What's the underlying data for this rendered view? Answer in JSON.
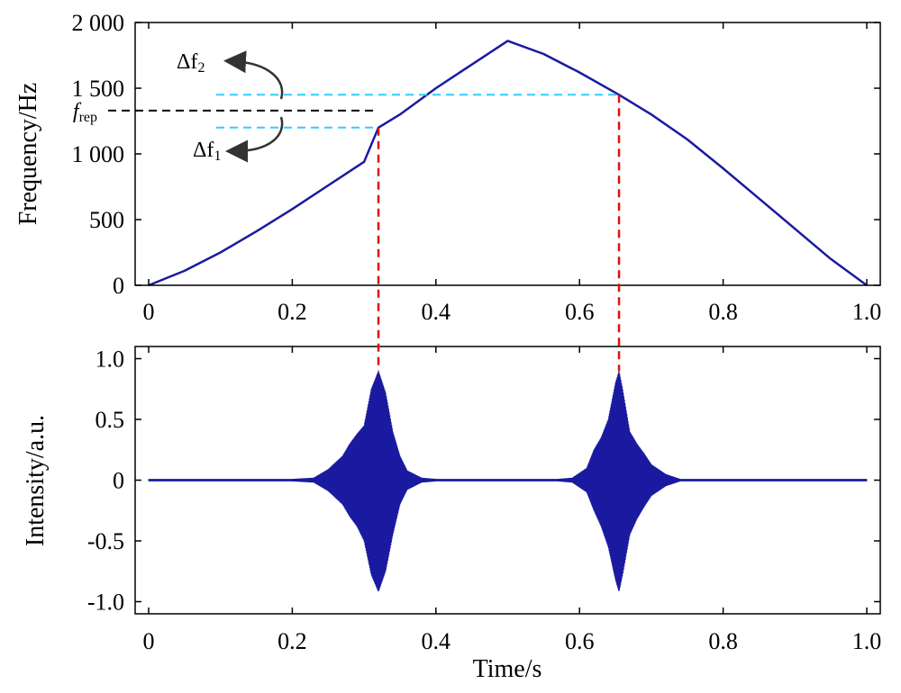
{
  "chart_data": [
    {
      "type": "line",
      "ylabel": "Frequency/Hz",
      "xlim": [
        0,
        1.0
      ],
      "ylim": [
        0,
        2000
      ],
      "xticks": [
        "0",
        "0.2",
        "0.4",
        "0.6",
        "0.8",
        "1.0"
      ],
      "yticks": [
        "0",
        "500",
        "1 000",
        "1 500",
        "2 000"
      ],
      "series": [
        {
          "color": "#1a1aa0",
          "x": [
            0,
            0.05,
            0.1,
            0.15,
            0.2,
            0.25,
            0.3,
            0.32,
            0.35,
            0.4,
            0.45,
            0.5,
            0.55,
            0.6,
            0.655,
            0.7,
            0.75,
            0.8,
            0.85,
            0.9,
            0.95,
            1.0
          ],
          "y": [
            0,
            110,
            250,
            410,
            580,
            760,
            940,
            1200,
            1300,
            1500,
            1680,
            1860,
            1760,
            1620,
            1450,
            1300,
            1110,
            890,
            660,
            430,
            200,
            0
          ]
        }
      ],
      "reference_lines": {
        "f_rep_level": 1330,
        "f1_level": 1200,
        "f2_level": 1450,
        "time_markers": [
          0.32,
          0.655
        ]
      },
      "annotations": {
        "f_rep": {
          "main": "f",
          "sub": "rep"
        },
        "delta_f1": {
          "main": "Δf",
          "sub": "1"
        },
        "delta_f2": {
          "main": "Δf",
          "sub": "2"
        }
      }
    },
    {
      "type": "line",
      "xlabel": "Time/s",
      "ylabel": "Intensity/a.u.",
      "xlim": [
        0,
        1.0
      ],
      "ylim": [
        -1.1,
        1.1
      ],
      "xticks": [
        "0",
        "0.2",
        "0.4",
        "0.6",
        "0.8",
        "1.0"
      ],
      "yticks": [
        "-1.0",
        "-0.5",
        "0",
        "0.5",
        "1.0"
      ],
      "series": [
        {
          "color": "#1a1aa0",
          "envelope": {
            "description_free": true,
            "x": [
              0,
              0.2,
              0.23,
              0.25,
              0.27,
              0.28,
              0.29,
              0.3,
              0.31,
              0.32,
              0.33,
              0.34,
              0.35,
              0.36,
              0.38,
              0.4,
              0.57,
              0.59,
              0.61,
              0.62,
              0.63,
              0.64,
              0.65,
              0.655,
              0.66,
              0.67,
              0.68,
              0.69,
              0.7,
              0.72,
              0.74,
              0.8,
              1.0
            ],
            "upper": [
              0.01,
              0.01,
              0.02,
              0.09,
              0.2,
              0.3,
              0.38,
              0.45,
              0.75,
              0.9,
              0.72,
              0.4,
              0.2,
              0.08,
              0.02,
              0.01,
              0.01,
              0.02,
              0.1,
              0.25,
              0.35,
              0.5,
              0.8,
              0.9,
              0.75,
              0.4,
              0.3,
              0.22,
              0.13,
              0.05,
              0.01,
              0.01,
              0.01
            ],
            "lower": [
              -0.01,
              -0.01,
              -0.02,
              -0.09,
              -0.2,
              -0.3,
              -0.38,
              -0.5,
              -0.78,
              -0.92,
              -0.75,
              -0.45,
              -0.2,
              -0.08,
              -0.02,
              -0.01,
              -0.01,
              -0.02,
              -0.1,
              -0.25,
              -0.38,
              -0.55,
              -0.82,
              -0.92,
              -0.78,
              -0.45,
              -0.32,
              -0.22,
              -0.13,
              -0.05,
              -0.01,
              -0.01,
              -0.01
            ]
          }
        }
      ]
    }
  ]
}
